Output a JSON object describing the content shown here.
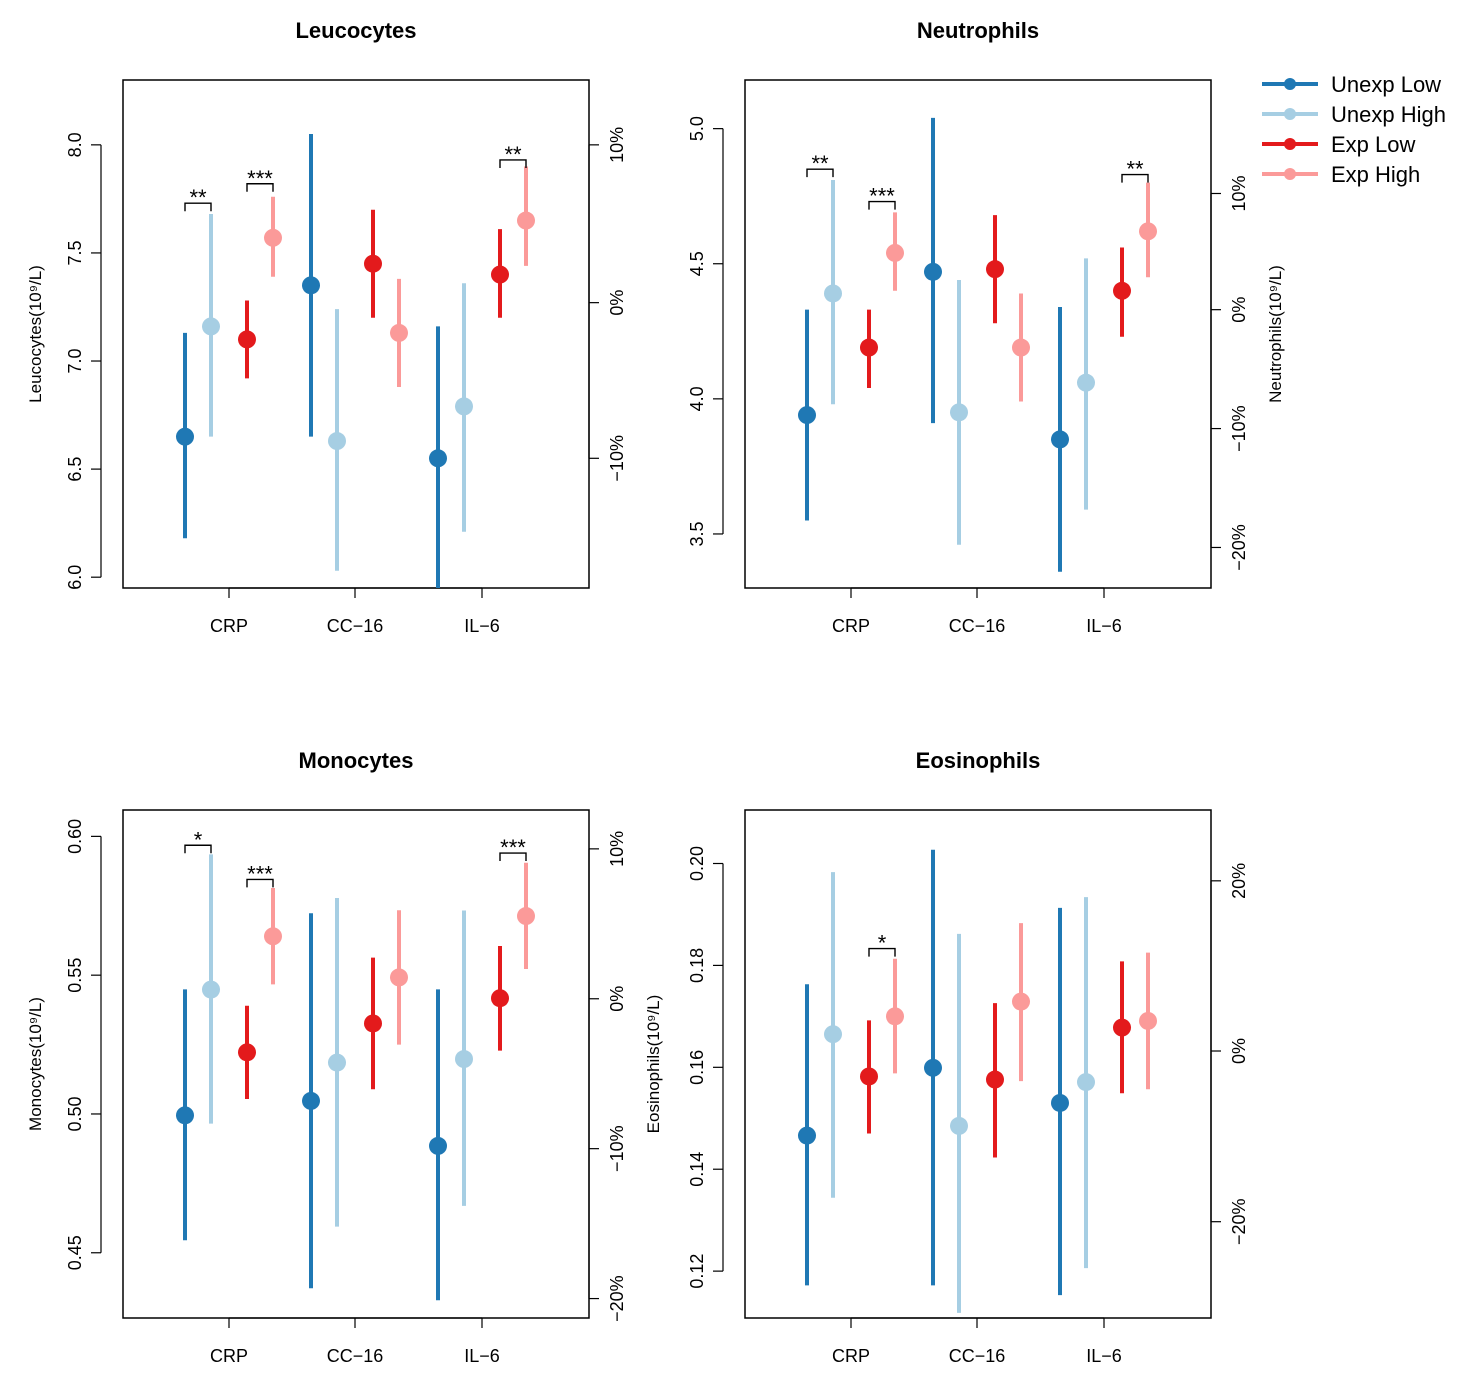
{
  "legend": {
    "position": "top-right",
    "items": [
      {
        "name": "Unexp Low",
        "color": "#1f78b4"
      },
      {
        "name": "Unexp High",
        "color": "#a6cee3"
      },
      {
        "name": "Exp Low",
        "color": "#e31a1c"
      },
      {
        "name": "Exp High",
        "color": "#fb9a99"
      }
    ]
  },
  "chart_data": [
    {
      "type": "scatter",
      "title": "Leucocytes",
      "ylabel": "Leucocytes(10⁹/L)",
      "ylabel_right": "",
      "categories": [
        "CRP",
        "CC−16",
        "IL−6"
      ],
      "ylim": [
        5.95,
        8.3
      ],
      "yticks": [
        6.0,
        6.5,
        7.0,
        7.5,
        8.0
      ],
      "ytick_labels": [
        "6.0",
        "6.5",
        "7.0",
        "7.5",
        "8.0"
      ],
      "right_ticks": [
        {
          "label": "−10%",
          "value": 6.55
        },
        {
          "label": "0%",
          "value": 7.27
        },
        {
          "label": "10%",
          "value": 8.0
        }
      ],
      "series": [
        {
          "name": "Unexp Low",
          "points": [
            {
              "y": 6.65,
              "lo": 6.18,
              "hi": 7.13
            },
            {
              "y": 7.35,
              "lo": 6.65,
              "hi": 8.05
            },
            {
              "y": 6.55,
              "lo": 5.95,
              "hi": 7.16
            }
          ]
        },
        {
          "name": "Unexp High",
          "points": [
            {
              "y": 7.16,
              "lo": 6.65,
              "hi": 7.68
            },
            {
              "y": 6.63,
              "lo": 6.03,
              "hi": 7.24
            },
            {
              "y": 6.79,
              "lo": 6.21,
              "hi": 7.36
            }
          ]
        },
        {
          "name": "Exp Low",
          "points": [
            {
              "y": 7.1,
              "lo": 6.92,
              "hi": 7.28
            },
            {
              "y": 7.45,
              "lo": 7.2,
              "hi": 7.7
            },
            {
              "y": 7.4,
              "lo": 7.2,
              "hi": 7.61
            }
          ]
        },
        {
          "name": "Exp High",
          "points": [
            {
              "y": 7.57,
              "lo": 7.39,
              "hi": 7.76
            },
            {
              "y": 7.13,
              "lo": 6.88,
              "hi": 7.38
            },
            {
              "y": 7.65,
              "lo": 7.44,
              "hi": 7.9
            }
          ]
        }
      ],
      "significance": [
        {
          "category": 0,
          "pair": "unexp",
          "label": "**",
          "y": 7.73
        },
        {
          "category": 0,
          "pair": "exp",
          "label": "***",
          "y": 7.82
        },
        {
          "category": 2,
          "pair": "exp",
          "label": "**",
          "y": 7.93
        }
      ]
    },
    {
      "type": "scatter",
      "title": "Neutrophils",
      "ylabel": "",
      "ylabel_right": "Neutrophils(10⁹/L)",
      "categories": [
        "CRP",
        "CC−16",
        "IL−6"
      ],
      "ylim": [
        3.3,
        5.18
      ],
      "yticks": [
        3.5,
        4.0,
        4.5,
        5.0
      ],
      "ytick_labels": [
        "3.5",
        "4.0",
        "4.5",
        "5.0"
      ],
      "right_ticks": [
        {
          "label": "−20%",
          "value": 3.45
        },
        {
          "label": "−10%",
          "value": 3.89
        },
        {
          "label": "0%",
          "value": 4.33
        },
        {
          "label": "10%",
          "value": 4.76
        }
      ],
      "series": [
        {
          "name": "Unexp Low",
          "points": [
            {
              "y": 3.94,
              "lo": 3.55,
              "hi": 4.33
            },
            {
              "y": 4.47,
              "lo": 3.91,
              "hi": 5.04
            },
            {
              "y": 3.85,
              "lo": 3.36,
              "hi": 4.34
            }
          ]
        },
        {
          "name": "Unexp High",
          "points": [
            {
              "y": 4.39,
              "lo": 3.98,
              "hi": 4.81
            },
            {
              "y": 3.95,
              "lo": 3.46,
              "hi": 4.44
            },
            {
              "y": 4.06,
              "lo": 3.59,
              "hi": 4.52
            }
          ]
        },
        {
          "name": "Exp Low",
          "points": [
            {
              "y": 4.19,
              "lo": 4.04,
              "hi": 4.33
            },
            {
              "y": 4.48,
              "lo": 4.28,
              "hi": 4.68
            },
            {
              "y": 4.4,
              "lo": 4.23,
              "hi": 4.56
            }
          ]
        },
        {
          "name": "Exp High",
          "points": [
            {
              "y": 4.54,
              "lo": 4.4,
              "hi": 4.69
            },
            {
              "y": 4.19,
              "lo": 3.99,
              "hi": 4.39
            },
            {
              "y": 4.62,
              "lo": 4.45,
              "hi": 4.8
            }
          ]
        }
      ],
      "significance": [
        {
          "category": 0,
          "pair": "unexp",
          "label": "**",
          "y": 4.85
        },
        {
          "category": 0,
          "pair": "exp",
          "label": "***",
          "y": 4.73
        },
        {
          "category": 2,
          "pair": "exp",
          "label": "**",
          "y": 4.83
        }
      ]
    },
    {
      "type": "scatter",
      "title": "Monocytes",
      "ylabel": "Monocytes(10⁹/L)",
      "ylabel_right": "Eosinophils(10⁹/L)",
      "categories": [
        "CRP",
        "CC−16",
        "IL−6"
      ],
      "ylim": [
        0.4265,
        0.6095
      ],
      "yticks": [
        0.45,
        0.5,
        0.55,
        0.6
      ],
      "ytick_labels": [
        "0.45",
        "0.50",
        "0.55",
        "0.60"
      ],
      "right_ticks": [
        {
          "label": "−20%",
          "value": 0.4335
        },
        {
          "label": "−10%",
          "value": 0.4875
        },
        {
          "label": "0%",
          "value": 0.5415
        },
        {
          "label": "10%",
          "value": 0.5955
        }
      ],
      "series": [
        {
          "name": "Unexp Low",
          "points": [
            {
              "y": 0.4995,
              "lo": 0.4545,
              "hi": 0.5449
            },
            {
              "y": 0.5047,
              "lo": 0.4372,
              "hi": 0.5723
            },
            {
              "y": 0.4885,
              "lo": 0.4329,
              "hi": 0.5449
            }
          ]
        },
        {
          "name": "Unexp High",
          "points": [
            {
              "y": 0.5448,
              "lo": 0.4965,
              "hi": 0.5935
            },
            {
              "y": 0.5185,
              "lo": 0.4594,
              "hi": 0.5778
            },
            {
              "y": 0.5198,
              "lo": 0.4669,
              "hi": 0.5733
            }
          ]
        },
        {
          "name": "Exp Low",
          "points": [
            {
              "y": 0.5222,
              "lo": 0.5054,
              "hi": 0.539
            },
            {
              "y": 0.5326,
              "lo": 0.5089,
              "hi": 0.5563
            },
            {
              "y": 0.5417,
              "lo": 0.5228,
              "hi": 0.5605
            }
          ]
        },
        {
          "name": "Exp High",
          "points": [
            {
              "y": 0.564,
              "lo": 0.5467,
              "hi": 0.5814
            },
            {
              "y": 0.5492,
              "lo": 0.525,
              "hi": 0.5734
            },
            {
              "y": 0.5713,
              "lo": 0.5522,
              "hi": 0.5905
            }
          ]
        }
      ],
      "significance": [
        {
          "category": 0,
          "pair": "unexp",
          "label": "*",
          "y": 0.5968
        },
        {
          "category": 0,
          "pair": "exp",
          "label": "***",
          "y": 0.5845
        },
        {
          "category": 2,
          "pair": "exp",
          "label": "***",
          "y": 0.594
        }
      ]
    },
    {
      "type": "scatter",
      "title": "Eosinophils",
      "ylabel": "",
      "ylabel_right": "",
      "categories": [
        "CRP",
        "CC−16",
        "IL−6"
      ],
      "ylim": [
        0.1108,
        0.2105
      ],
      "yticks": [
        0.12,
        0.14,
        0.16,
        0.18,
        0.2
      ],
      "ytick_labels": [
        "0.12",
        "0.14",
        "0.16",
        "0.18",
        "0.20"
      ],
      "right_ticks": [
        {
          "label": "−20%",
          "value": 0.1297
        },
        {
          "label": "0%",
          "value": 0.1632
        },
        {
          "label": "20%",
          "value": 0.1966
        }
      ],
      "series": [
        {
          "name": "Unexp Low",
          "points": [
            {
              "y": 0.1466,
              "lo": 0.1172,
              "hi": 0.1763
            },
            {
              "y": 0.1599,
              "lo": 0.1172,
              "hi": 0.2027
            },
            {
              "y": 0.153,
              "lo": 0.1153,
              "hi": 0.1913
            }
          ]
        },
        {
          "name": "Unexp High",
          "points": [
            {
              "y": 0.1665,
              "lo": 0.1344,
              "hi": 0.1983
            },
            {
              "y": 0.1485,
              "lo": 0.1118,
              "hi": 0.1862
            },
            {
              "y": 0.1571,
              "lo": 0.1206,
              "hi": 0.1934
            }
          ]
        },
        {
          "name": "Exp Low",
          "points": [
            {
              "y": 0.1582,
              "lo": 0.147,
              "hi": 0.1692
            },
            {
              "y": 0.1576,
              "lo": 0.1423,
              "hi": 0.1726
            },
            {
              "y": 0.1678,
              "lo": 0.1549,
              "hi": 0.1808
            }
          ]
        },
        {
          "name": "Exp High",
          "points": [
            {
              "y": 0.17,
              "lo": 0.1588,
              "hi": 0.1813
            },
            {
              "y": 0.1729,
              "lo": 0.1573,
              "hi": 0.1883
            },
            {
              "y": 0.1691,
              "lo": 0.1557,
              "hi": 0.1825
            }
          ]
        }
      ],
      "significance": [
        {
          "category": 0,
          "pair": "exp",
          "label": "*",
          "y": 0.1833
        }
      ]
    }
  ]
}
